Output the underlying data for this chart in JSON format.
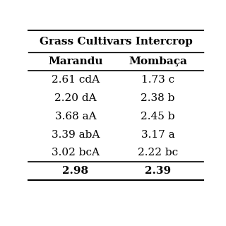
{
  "title": "Grass Cultivars Intercrop",
  "col_headers": [
    "Marandu",
    "Mombaça"
  ],
  "rows": [
    [
      "2.61 cdA",
      "1.73 c"
    ],
    [
      "2.20 dA",
      "2.38 b"
    ],
    [
      "3.68 aA",
      "2.45 b"
    ],
    [
      "3.39 abA",
      "3.17 a"
    ],
    [
      "3.02 bcA",
      "2.22 bc"
    ]
  ],
  "footer": [
    "2.98",
    "2.39"
  ],
  "background_color": "#ffffff",
  "text_color": "#000000",
  "header_fontsize": 11,
  "cell_fontsize": 11,
  "title_fontsize": 11
}
